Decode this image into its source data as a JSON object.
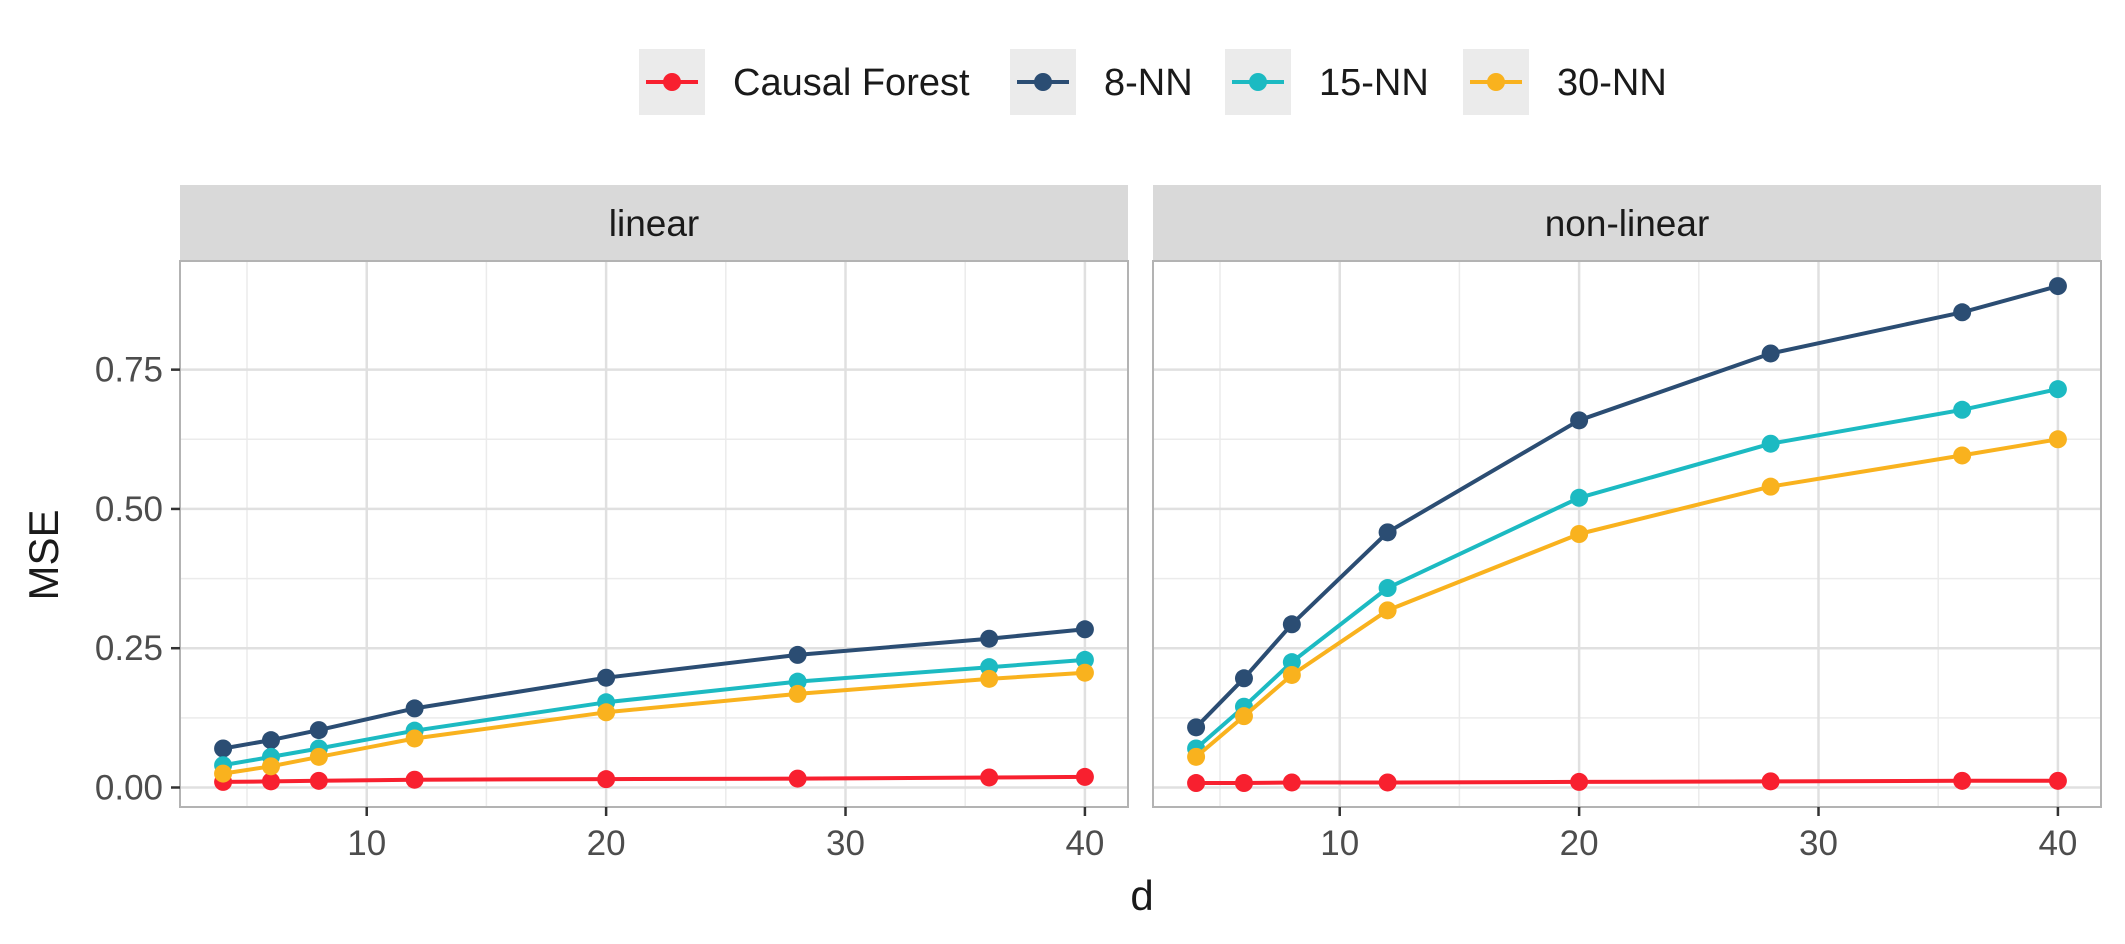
{
  "chart_data": {
    "type": "line",
    "xlabel": "d",
    "ylabel": "MSE",
    "x": [
      4,
      6,
      8,
      12,
      20,
      28,
      36,
      40
    ],
    "xticks": [
      10,
      20,
      30,
      40
    ],
    "xlim": [
      2.2,
      41.8
    ],
    "yticks": [
      0.0,
      0.25,
      0.5,
      0.75
    ],
    "ytick_labels": [
      "0.00",
      "0.25",
      "0.50",
      "0.75"
    ],
    "ylim": [
      -0.035,
      0.945
    ],
    "grid": true,
    "legend_position": "top",
    "legend": [
      {
        "name": "Causal Forest",
        "color": "#F8202F"
      },
      {
        "name": "8-NN",
        "color": "#2B4D73"
      },
      {
        "name": "15-NN",
        "color": "#1CBAC2"
      },
      {
        "name": "30-NN",
        "color": "#F9B21E"
      }
    ],
    "panels": [
      {
        "label": "linear",
        "series": [
          {
            "name": "Causal Forest",
            "values": [
              0.01,
              0.011,
              0.012,
              0.014,
              0.015,
              0.016,
              0.018,
              0.019
            ]
          },
          {
            "name": "8-NN",
            "values": [
              0.07,
              0.085,
              0.103,
              0.142,
              0.197,
              0.238,
              0.267,
              0.284
            ]
          },
          {
            "name": "15-NN",
            "values": [
              0.04,
              0.055,
              0.07,
              0.102,
              0.153,
              0.19,
              0.216,
              0.229
            ]
          },
          {
            "name": "30-NN",
            "values": [
              0.025,
              0.038,
              0.055,
              0.088,
              0.135,
              0.168,
              0.195,
              0.206
            ]
          }
        ]
      },
      {
        "label": "non-linear",
        "series": [
          {
            "name": "Causal Forest",
            "values": [
              0.008,
              0.008,
              0.009,
              0.009,
              0.01,
              0.011,
              0.012,
              0.012
            ]
          },
          {
            "name": "8-NN",
            "values": [
              0.108,
              0.196,
              0.293,
              0.458,
              0.659,
              0.779,
              0.853,
              0.9
            ]
          },
          {
            "name": "15-NN",
            "values": [
              0.07,
              0.145,
              0.225,
              0.358,
              0.52,
              0.617,
              0.678,
              0.715
            ]
          },
          {
            "name": "30-NN",
            "values": [
              0.055,
              0.128,
              0.202,
              0.318,
              0.455,
              0.54,
              0.596,
              0.625
            ]
          }
        ]
      }
    ]
  }
}
